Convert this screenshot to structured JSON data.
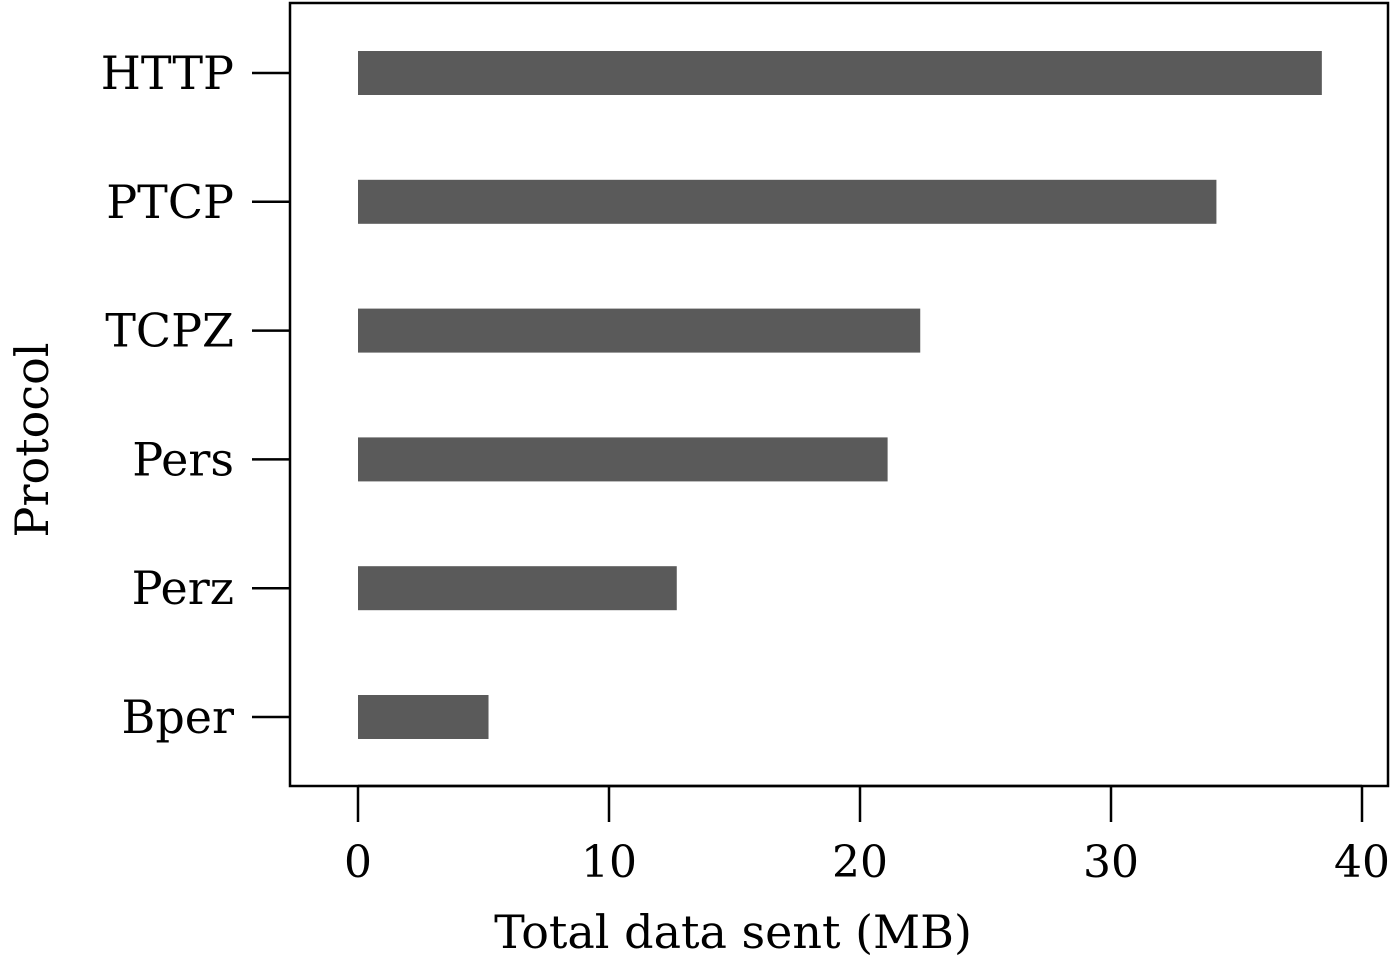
{
  "chart_data": {
    "type": "bar",
    "orientation": "horizontal",
    "categories": [
      "HTTP",
      "PTCP",
      "TCPZ",
      "Pers",
      "Perz",
      "Bper"
    ],
    "values": [
      38.4,
      34.2,
      22.4,
      21.1,
      12.7,
      5.2
    ],
    "title": "",
    "xlabel": "Total data sent (MB)",
    "ylabel": "Protocol",
    "xlim": [
      -2.7,
      40.9
    ],
    "xticks": [
      0,
      10,
      20,
      30,
      40
    ],
    "xtick_labels": [
      "0",
      "10",
      "20",
      "30",
      "40"
    ],
    "grid": false,
    "legend": "none",
    "colors": {
      "bar": "#5a5a5a",
      "axis": "#000000",
      "background": "#ffffff"
    }
  }
}
